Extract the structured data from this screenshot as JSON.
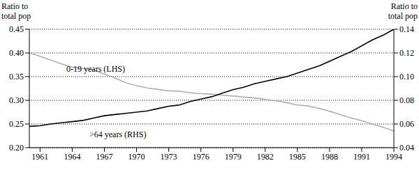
{
  "chart_data": {
    "type": "line",
    "y_label": "Ratio to total pop",
    "y2_label": "Ratio to total pop",
    "x": [
      1960,
      1961,
      1962,
      1963,
      1964,
      1965,
      1966,
      1967,
      1968,
      1969,
      1970,
      1971,
      1972,
      1973,
      1974,
      1975,
      1976,
      1977,
      1978,
      1979,
      1980,
      1981,
      1982,
      1983,
      1984,
      1985,
      1986,
      1987,
      1988,
      1989,
      1990,
      1991,
      1992,
      1993,
      1994
    ],
    "series": [
      {
        "name": "0-19 years (LHS)",
        "color": "#b0b0b0",
        "axis": "y",
        "values": [
          0.4,
          0.393,
          0.385,
          0.377,
          0.37,
          0.367,
          0.364,
          0.355,
          0.347,
          0.337,
          0.331,
          0.326,
          0.323,
          0.32,
          0.319,
          0.316,
          0.314,
          0.313,
          0.311,
          0.309,
          0.307,
          0.305,
          0.302,
          0.299,
          0.295,
          0.29,
          0.288,
          0.283,
          0.277,
          0.27,
          0.263,
          0.257,
          0.25,
          0.243,
          0.235
        ]
      },
      {
        "name": ">64 years (RHS)",
        "color": "#000000",
        "axis": "y2",
        "values": [
          0.058,
          0.0585,
          0.06,
          0.061,
          0.062,
          0.063,
          0.065,
          0.067,
          0.068,
          0.069,
          0.07,
          0.071,
          0.073,
          0.075,
          0.076,
          0.079,
          0.081,
          0.083,
          0.086,
          0.089,
          0.091,
          0.094,
          0.096,
          0.098,
          0.1,
          0.103,
          0.106,
          0.109,
          0.113,
          0.117,
          0.121,
          0.126,
          0.131,
          0.135,
          0.14
        ]
      }
    ],
    "xlim": [
      1960,
      1994
    ],
    "xticks": [
      1961,
      1964,
      1967,
      1970,
      1973,
      1976,
      1979,
      1982,
      1985,
      1988,
      1991,
      1994
    ],
    "ylim": [
      0.2,
      0.45
    ],
    "yticks": [
      {
        "value": 0.2,
        "label": "0.20"
      },
      0.25,
      {
        "value": 0.3,
        "label": "0.30"
      },
      0.35,
      {
        "value": 0.4,
        "label": "0.40"
      },
      0.45
    ],
    "y2lim": [
      0.04,
      0.14
    ],
    "y2ticks": [
      0.04,
      0.06,
      0.08,
      {
        "value": 0.1,
        "label": "0.10"
      },
      0.12,
      0.14
    ],
    "grid": true
  }
}
